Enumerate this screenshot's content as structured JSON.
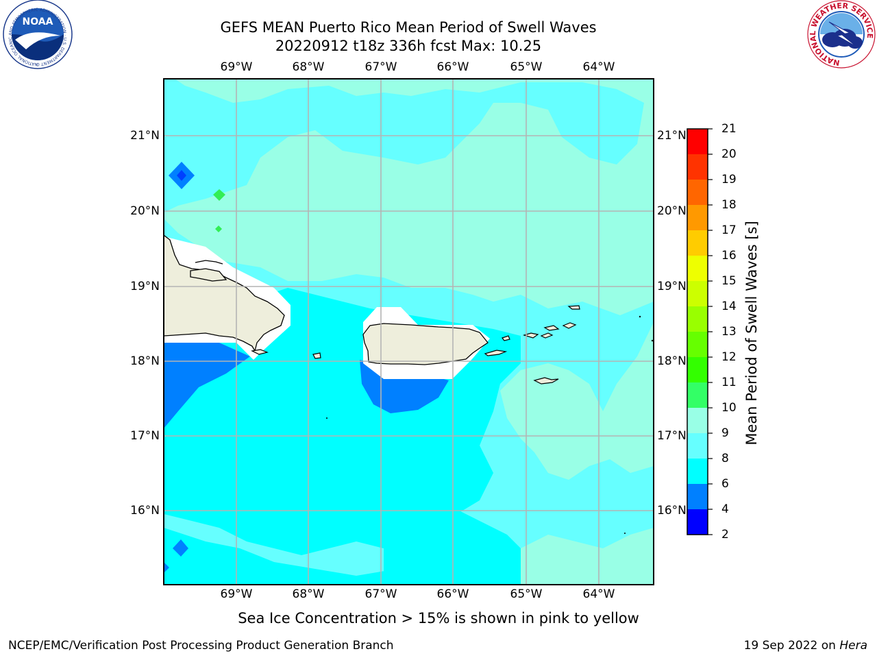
{
  "title": {
    "line1": "GEFS MEAN Puerto Rico Mean Period of Swell Waves",
    "line2": "20220912 t18z 336h fcst   Max: 10.25"
  },
  "map": {
    "lon_labels": [
      "69°W",
      "68°W",
      "67°W",
      "66°W",
      "65°W",
      "64°W"
    ],
    "lat_labels": [
      "21°N",
      "20°N",
      "19°N",
      "18°N",
      "17°N",
      "16°N"
    ],
    "lon_range": [
      -70.0,
      -63.25
    ],
    "lat_range": [
      15.05,
      21.75
    ],
    "gridlines": true
  },
  "colorbar": {
    "label": "Mean Period of Swell Waves [s]",
    "ticks": [
      "2",
      "4",
      "6",
      "8",
      "9",
      "10",
      "11",
      "12",
      "13",
      "14",
      "15",
      "16",
      "17",
      "18",
      "19",
      "20",
      "21"
    ],
    "colors": [
      "#0000ff",
      "#0080ff",
      "#00ffff",
      "#66ffff",
      "#99ffe6",
      "#33ff66",
      "#33ff00",
      "#66ff00",
      "#99ff00",
      "#ccff00",
      "#eeff00",
      "#ffff00",
      "#ffcc00",
      "#ff9900",
      "#ff6600",
      "#ff3300",
      "#ff0000"
    ]
  },
  "field_colors": {
    "land": "#eeeedc",
    "mask": "#ffffff",
    "band_4_6": "#0080ff",
    "band_6_8": "#00ffff",
    "band_8_9": "#66ffff",
    "band_9_10": "#99ffe6",
    "band_10_11": "#33ee55"
  },
  "footnote": "Sea Ice Concentration > 15% is shown in pink to yellow",
  "credit": "NCEP/EMC/Verification Post Processing Product Generation Branch",
  "dateline": {
    "date": "19 Sep 2022 on ",
    "machine": "Hera"
  },
  "logos": {
    "left": "NOAA",
    "left_ring": "NATIONAL OCEANIC AND ATMOSPHERIC ADMINISTRATION · U.S. DEPARTMENT OF COMMERCE",
    "right_ring": "NATIONAL WEATHER SERVICE"
  }
}
